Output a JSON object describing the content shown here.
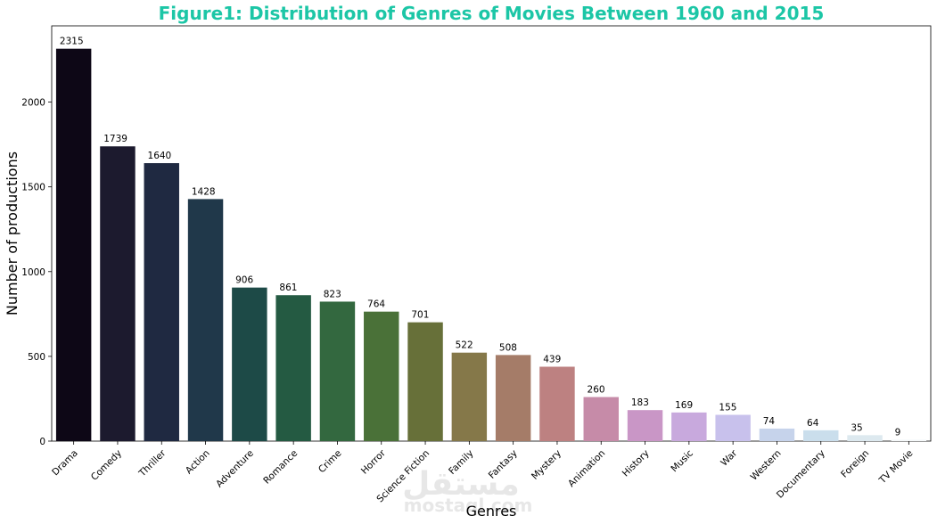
{
  "chart_data": {
    "type": "bar",
    "title": "Figure1: Distribution of Genres of Movies Between 1960 and 2015",
    "title_color": "#1cc6a6",
    "xlabel": "Genres",
    "ylabel": "Number of productions",
    "categories": [
      "Drama",
      "Comedy",
      "Thriller",
      "Action",
      "Adventure",
      "Romance",
      "Crime",
      "Horror",
      "Science Fiction",
      "Family",
      "Fantasy",
      "Mystery",
      "Animation",
      "History",
      "Music",
      "War",
      "Western",
      "Documentary",
      "Foreign",
      "TV Movie"
    ],
    "values": [
      2315,
      1739,
      1640,
      1428,
      906,
      861,
      823,
      764,
      701,
      522,
      508,
      439,
      260,
      183,
      169,
      155,
      74,
      64,
      35,
      9
    ],
    "colors": [
      "#0d0716",
      "#1c1a2e",
      "#1f2941",
      "#20384a",
      "#1d4a47",
      "#245a42",
      "#33683f",
      "#4a7138",
      "#677039",
      "#857849",
      "#a57c68",
      "#bd8181",
      "#c68ba8",
      "#c996c6",
      "#c8a9dd",
      "#c8c1ec",
      "#c6d3eb",
      "#cadeec",
      "#dde9ef",
      "#f5f9fa"
    ],
    "ylim": [
      0,
      2450
    ],
    "yticks": [
      0,
      500,
      1000,
      1500,
      2000
    ],
    "grid": false,
    "legend": "none",
    "watermark": {
      "arabic": "مستقل",
      "latin": "mostaql.com"
    }
  }
}
